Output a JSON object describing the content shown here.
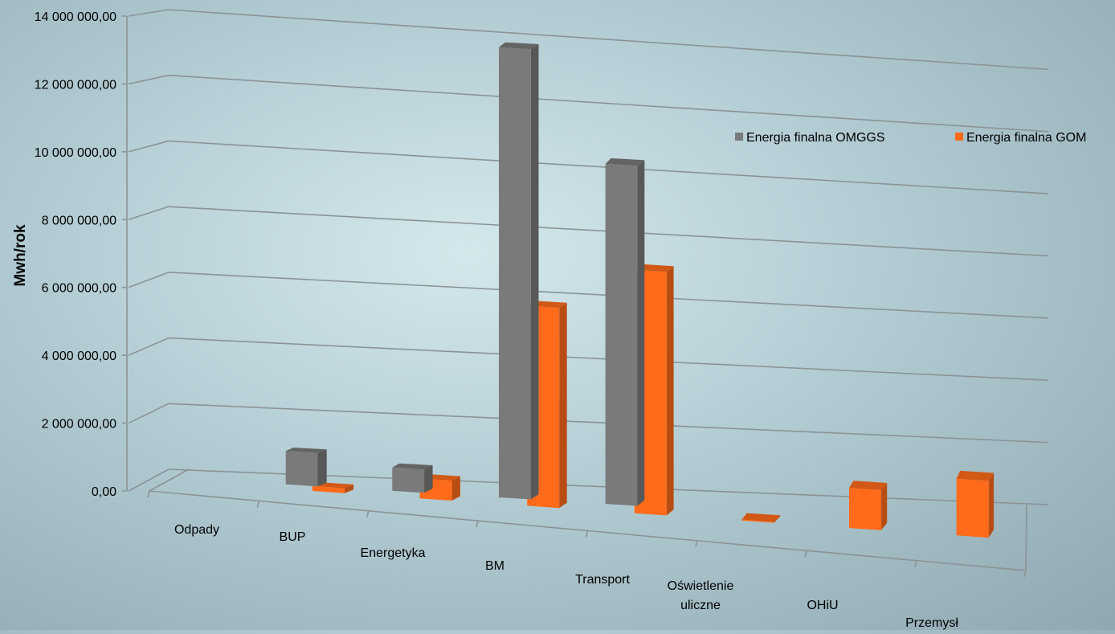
{
  "chart_data": {
    "type": "bar",
    "ylabel": "Mwh/rok",
    "xlabel": "",
    "ylim": [
      0,
      14000000
    ],
    "y_ticks": [
      0,
      2000000,
      4000000,
      6000000,
      8000000,
      10000000,
      12000000,
      14000000
    ],
    "y_tick_labels": [
      "0,00",
      "2 000 000,00",
      "4 000 000,00",
      "6 000 000,00",
      "8 000 000,00",
      "10 000 000,00",
      "12 000 000,00",
      "14 000 000,00"
    ],
    "categories": [
      "Odpady",
      "BUP",
      "Energetyka",
      "BM",
      "Transport",
      "Oświetlenie uliczne",
      "OHiU",
      "Przemysł"
    ],
    "series": [
      {
        "name": "Energia finalna OMGGS",
        "color": "#7a7a7a",
        "values": [
          0,
          1000000,
          700000,
          13500000,
          10200000,
          0,
          0,
          0
        ]
      },
      {
        "name": "Energia finalna GOM",
        "color": "#ff6b1a",
        "values": [
          0,
          150000,
          600000,
          6000000,
          7300000,
          30000,
          1200000,
          1700000
        ]
      }
    ],
    "legend_position": "top-right",
    "grid": true,
    "style": "3d-column"
  }
}
